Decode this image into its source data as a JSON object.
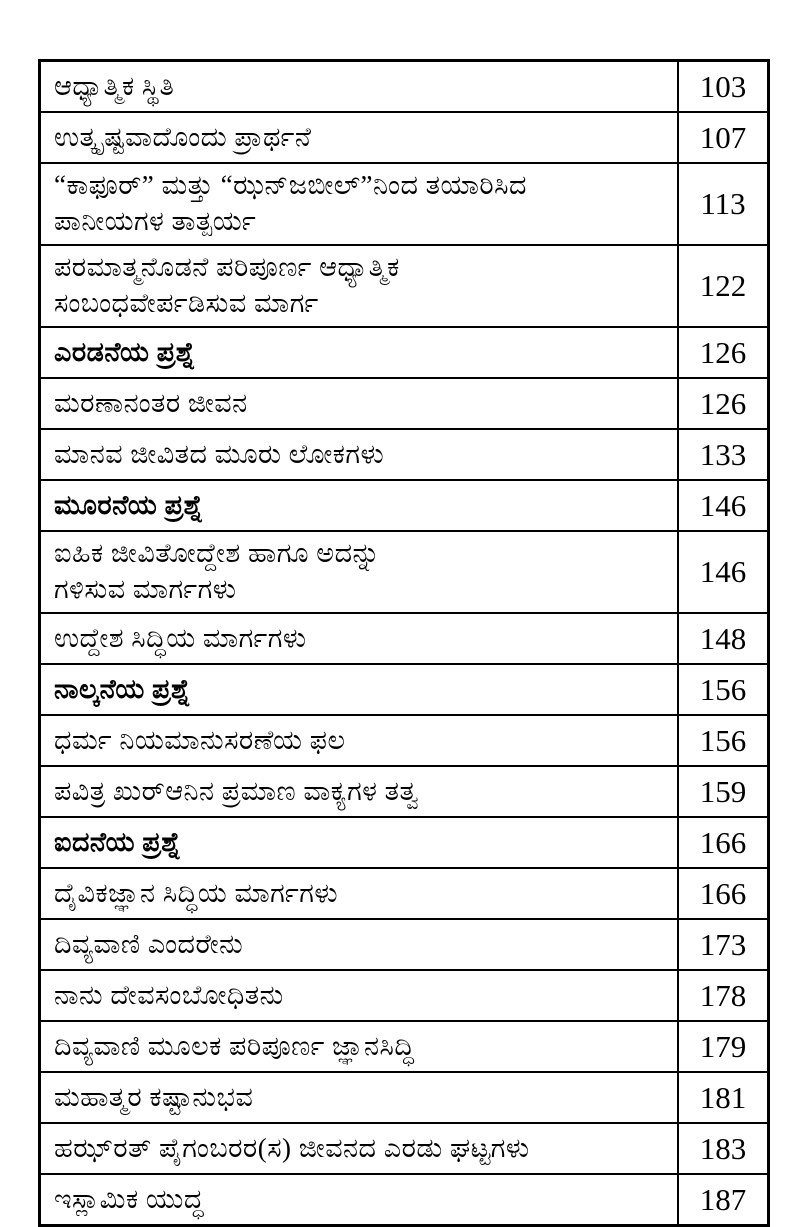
{
  "document": {
    "kind": "book-table-of-contents",
    "language": "Kannada"
  },
  "colors": {
    "border": "#000000",
    "text": "#000000",
    "background": "#ffffff"
  },
  "toc": {
    "rows": [
      {
        "title": "ಆಧ್ಯಾತ್ಮಿಕ ಸ್ಥಿತಿ",
        "page": "103",
        "section_heading": false
      },
      {
        "title": "ಉತ್ಕೃಷ್ಟವಾದೊಂದು ಪ್ರಾರ್ಥನೆ",
        "page": "107",
        "section_heading": false
      },
      {
        "title": "“ಕಾಫೂರ್” ಮತ್ತು “ಝನ್‌ಜಬೀಲ್”ನಿಂದ ತಯಾರಿಸಿದ\nಪಾನೀಯಗಳ ತಾತ್ಪರ್ಯ",
        "page": "113",
        "section_heading": false
      },
      {
        "title": "ಪರಮಾತ್ಮನೊಡನೆ ಪರಿಪೂರ್ಣ ಆಧ್ಯಾತ್ಮಿಕ\nಸಂಬಂಧವೇರ್ಪಡಿಸುವ ಮಾರ್ಗ",
        "page": "122",
        "section_heading": false
      },
      {
        "title": "ಎರಡನೆಯ ಪ್ರಶ್ನೆ",
        "page": "126",
        "section_heading": true
      },
      {
        "title": "ಮರಣಾನಂತರ ಜೀವನ",
        "page": "126",
        "section_heading": false
      },
      {
        "title": "ಮಾನವ ಜೀವಿತದ ಮೂರು ಲೋಕಗಳು",
        "page": "133",
        "section_heading": false
      },
      {
        "title": "ಮೂರನೆಯ ಪ್ರಶ್ನೆ",
        "page": "146",
        "section_heading": true
      },
      {
        "title": "ಐಹಿಕ ಜೀವಿತೋದ್ದೇಶ ಹಾಗೂ ಅದನ್ನು\nಗಳಿಸುವ ಮಾರ್ಗಗಳು",
        "page": "146",
        "section_heading": false
      },
      {
        "title": "ಉದ್ದೇಶ ಸಿದ್ಧಿಯ ಮಾರ್ಗಗಳು",
        "page": "148",
        "section_heading": false
      },
      {
        "title": "ನಾಲ್ಕನೆಯ ಪ್ರಶ್ನೆ",
        "page": "156",
        "section_heading": true
      },
      {
        "title": "ಧರ್ಮ ನಿಯಮಾನುಸರಣೆಯ ಫಲ",
        "page": "156",
        "section_heading": false
      },
      {
        "title": "ಪವಿತ್ರ ಖುರ್‌ಆನಿನ ಪ್ರಮಾಣ ವಾಕ್ಯಗಳ ತತ್ವ",
        "page": "159",
        "section_heading": false
      },
      {
        "title": "ಐದನೆಯ ಪ್ರಶ್ನೆ",
        "page": "166",
        "section_heading": true
      },
      {
        "title": "ದೈವಿಕಜ್ಞಾನ ಸಿದ್ಧಿಯ ಮಾರ್ಗಗಳು",
        "page": "166",
        "section_heading": false
      },
      {
        "title": "ದಿವ್ಯವಾಣಿ ಎಂದರೇನು",
        "page": "173",
        "section_heading": false
      },
      {
        "title": "ನಾನು ದೇವಸಂಬೋಧಿತನು",
        "page": "178",
        "section_heading": false
      },
      {
        "title": "ದಿವ್ಯವಾಣಿ ಮೂಲಕ ಪರಿಪೂರ್ಣ ಜ್ಞಾನಸಿದ್ಧಿ",
        "page": "179",
        "section_heading": false
      },
      {
        "title": "ಮಹಾತ್ಮರ ಕಷ್ಟಾನುಭವ",
        "page": "181",
        "section_heading": false
      },
      {
        "title": "ಹಝ್‌ರತ್ ಪೈಗಂಬರರ(ಸ) ಜೀವನದ ಎರಡು ಘಟ್ಟಗಳು",
        "page": "183",
        "section_heading": false
      },
      {
        "title": "ಇಸ್ಲಾಮಿಕ ಯುದ್ಧ",
        "page": "187",
        "section_heading": false
      }
    ]
  }
}
